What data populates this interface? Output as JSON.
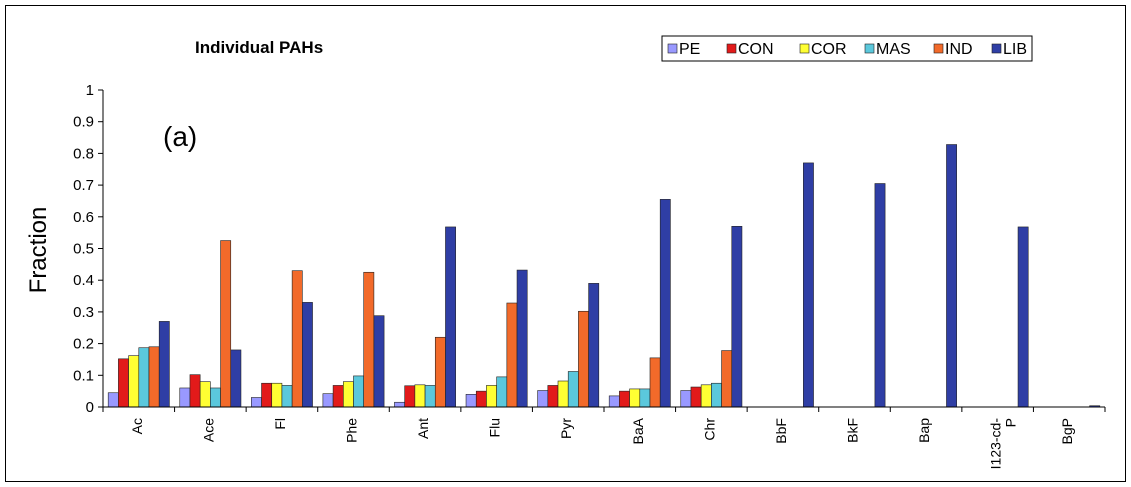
{
  "chart_data": {
    "type": "bar",
    "title": "Individual PAHs",
    "panel_label": "(a)",
    "ylabel": "Fraction",
    "xlabel": "",
    "ylim": [
      0,
      1
    ],
    "yticks": [
      "0",
      "0.1",
      "0.2",
      "0.3",
      "0.4",
      "0.5",
      "0.6",
      "0.7",
      "0.8",
      "0.9",
      "1"
    ],
    "grid": false,
    "legend_position": "top-right",
    "categories": [
      "Ac",
      "Ace",
      "Fl",
      "Phe",
      "Ant",
      "Flu",
      "Pyr",
      "BaA",
      "Chr",
      "BbF",
      "BkF",
      "Bap",
      "I123-cd-P",
      "BgP"
    ],
    "category_lines": [
      [
        "Ac"
      ],
      [
        "Ace"
      ],
      [
        "Fl"
      ],
      [
        "Phe"
      ],
      [
        "Ant"
      ],
      [
        "Flu"
      ],
      [
        "Pyr"
      ],
      [
        "BaA"
      ],
      [
        "Chr"
      ],
      [
        "BbF"
      ],
      [
        "BkF"
      ],
      [
        "Bap"
      ],
      [
        "I123-cd-",
        "P"
      ],
      [
        "BgP"
      ]
    ],
    "series": [
      {
        "name": "PE",
        "color": "#9999ff",
        "values": [
          0.045,
          0.06,
          0.03,
          0.042,
          0.015,
          0.04,
          0.052,
          0.035,
          0.052,
          0,
          0,
          0,
          0,
          0
        ]
      },
      {
        "name": "CON",
        "color": "#e21a1a",
        "values": [
          0.152,
          0.102,
          0.075,
          0.068,
          0.067,
          0.05,
          0.068,
          0.05,
          0.063,
          0,
          0,
          0,
          0,
          0
        ]
      },
      {
        "name": "COR",
        "color": "#ffff33",
        "values": [
          0.162,
          0.08,
          0.075,
          0.08,
          0.07,
          0.068,
          0.082,
          0.057,
          0.07,
          0,
          0,
          0,
          0,
          0
        ]
      },
      {
        "name": "MAS",
        "color": "#5bc8dc",
        "values": [
          0.187,
          0.06,
          0.068,
          0.098,
          0.068,
          0.095,
          0.112,
          0.057,
          0.075,
          0,
          0,
          0,
          0,
          0
        ]
      },
      {
        "name": "IND",
        "color": "#f26a2a",
        "values": [
          0.19,
          0.525,
          0.43,
          0.425,
          0.22,
          0.328,
          0.302,
          0.155,
          0.178,
          0,
          0,
          0,
          0,
          0
        ]
      },
      {
        "name": "LIB",
        "color": "#2f3ea5",
        "values": [
          0.27,
          0.18,
          0.33,
          0.288,
          0.568,
          0.432,
          0.39,
          0.655,
          0.57,
          0.77,
          0.705,
          0.828,
          0.568,
          0.004
        ]
      }
    ]
  }
}
